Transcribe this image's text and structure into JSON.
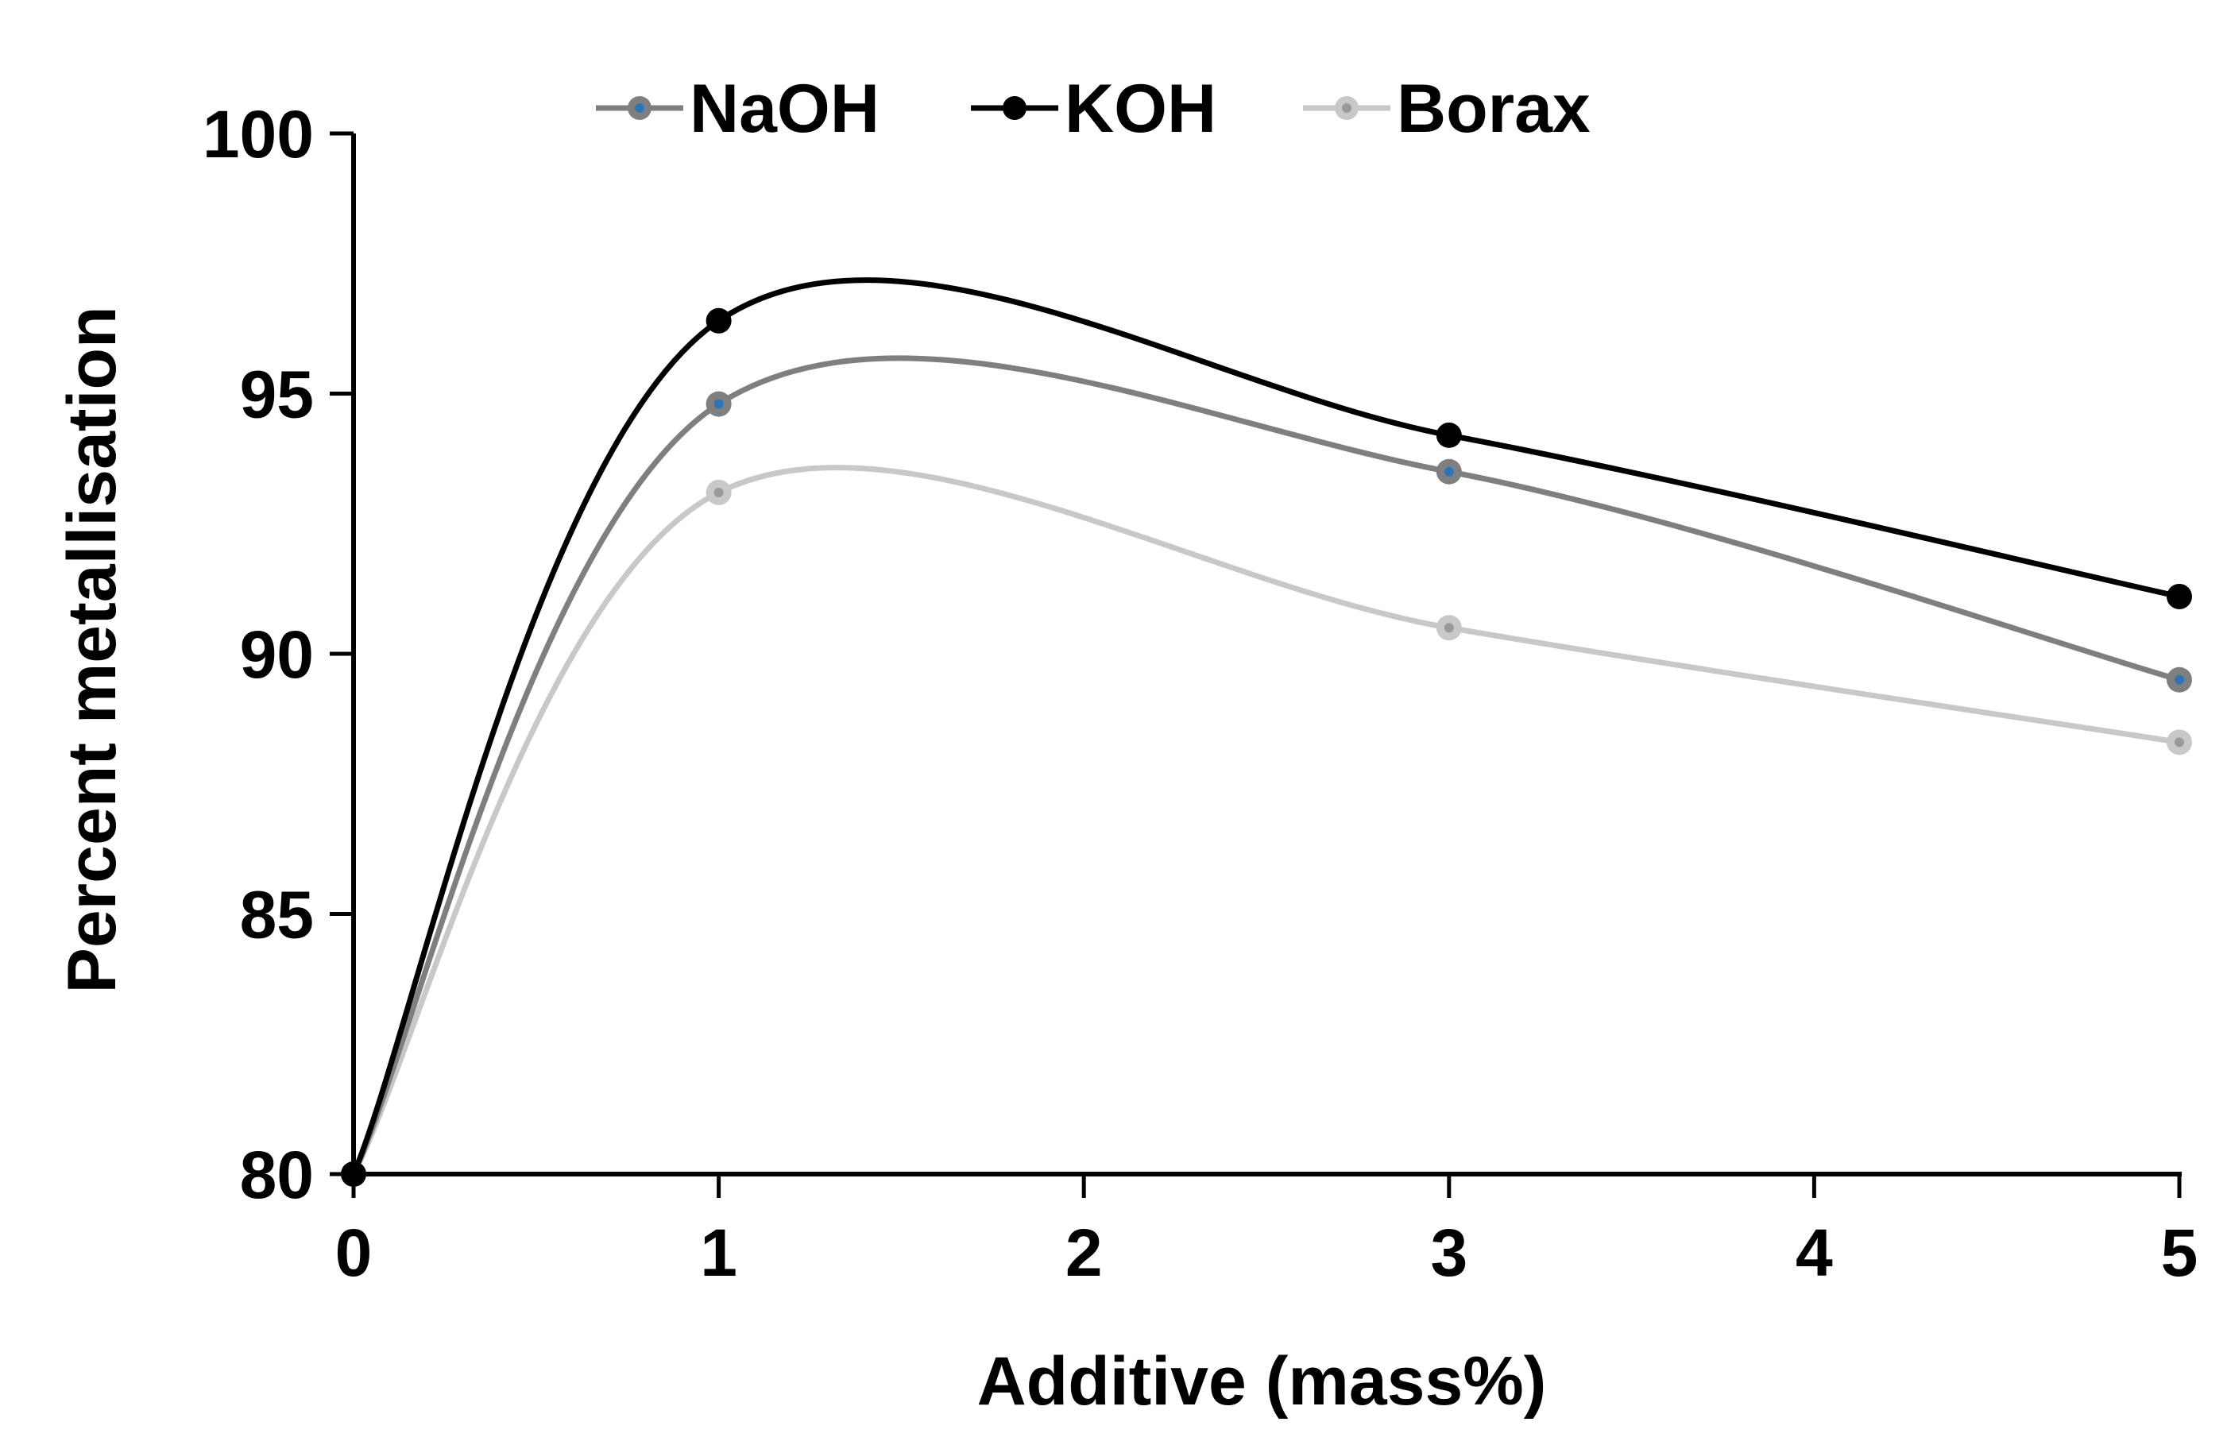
{
  "chart_data": {
    "type": "line",
    "title": "",
    "xlabel": "Additive (mass%)",
    "ylabel": "Percent metallisation",
    "xlim": [
      0,
      5
    ],
    "ylim": [
      80,
      100
    ],
    "x_ticks": [
      0,
      1,
      2,
      3,
      4,
      5
    ],
    "y_ticks": [
      80,
      85,
      90,
      95,
      100
    ],
    "x_tick_labels": [
      "0",
      "1",
      "2",
      "3",
      "4",
      "5"
    ],
    "y_tick_labels": [
      "80",
      "85",
      "90",
      "95",
      "100"
    ],
    "grid": false,
    "legend_position": "top-center",
    "smoothed_lines": true,
    "series": [
      {
        "name": "NaOH",
        "color": "#7f7f7f",
        "marker_center_color": "#2e75b6",
        "x": [
          0,
          1,
          3,
          5
        ],
        "y": [
          80.0,
          94.8,
          93.5,
          89.5
        ]
      },
      {
        "name": "KOH",
        "color": "#000000",
        "marker_center_color": "#000000",
        "x": [
          0,
          1,
          3,
          5
        ],
        "y": [
          80.0,
          96.4,
          94.2,
          91.1
        ]
      },
      {
        "name": "Borax",
        "color": "#c8c8c8",
        "marker_center_color": "#9a9a9a",
        "x": [
          0,
          1,
          3,
          5
        ],
        "y": [
          80.0,
          93.1,
          90.5,
          88.3
        ]
      }
    ]
  }
}
